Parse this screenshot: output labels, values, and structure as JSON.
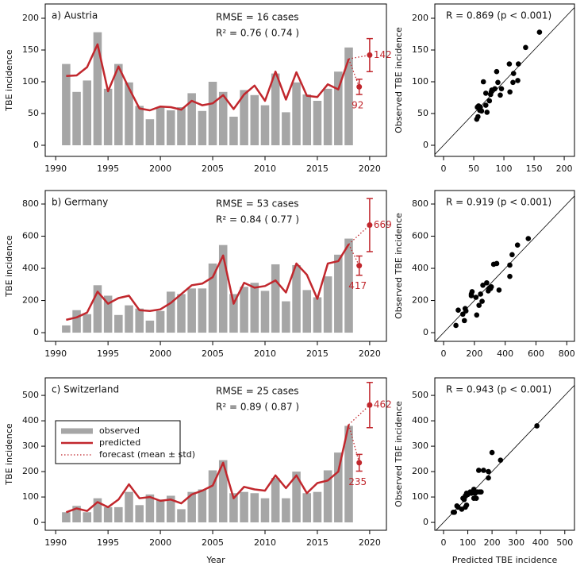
{
  "chart_data": [
    {
      "type": "bar",
      "title": "a) Austria",
      "rmse": "RMSE = 16 cases",
      "r2": "R² = 0.76 ( 0.74 )",
      "y_label": "TBE incidence",
      "x": [
        1991,
        1992,
        1993,
        1994,
        1995,
        1996,
        1997,
        1998,
        1999,
        2000,
        2001,
        2002,
        2003,
        2004,
        2005,
        2006,
        2007,
        2008,
        2009,
        2010,
        2011,
        2012,
        2013,
        2014,
        2015,
        2016,
        2017,
        2018
      ],
      "series": [
        {
          "color": "#a6a6a6",
          "values": [
            128,
            84,
            102,
            178,
            89,
            128,
            99,
            62,
            41,
            60,
            55,
            60,
            82,
            54,
            100,
            84,
            45,
            87,
            79,
            63,
            113,
            52,
            99,
            80,
            70,
            89,
            116,
            154
          ]
        },
        {
          "color": "#c1272d",
          "values": [
            109,
            110,
            123,
            159,
            85,
            124,
            90,
            58,
            55,
            61,
            60,
            56,
            70,
            63,
            66,
            79,
            57,
            80,
            94,
            70,
            116,
            72,
            115,
            78,
            76,
            96,
            88,
            136
          ]
        },
        {
          "color": "#c1272d",
          "x": [
            2019,
            2020
          ],
          "values": [
            92,
            142
          ],
          "errors": [
            12,
            26
          ]
        }
      ],
      "xlim": [
        1989,
        2021.6
      ],
      "xticks": [
        1990,
        1995,
        2000,
        2005,
        2010,
        2015,
        2020
      ],
      "ylim": [
        -17.5,
        222.5
      ],
      "yticks": [
        0,
        50,
        100,
        150,
        200
      ]
    },
    {
      "type": "scatter",
      "title": "R = 0.869 (p < 0.001)",
      "y_label": "Observed TBE incidence",
      "color": "#000000",
      "x": [
        109,
        110,
        123,
        159,
        85,
        124,
        90,
        58,
        55,
        61,
        60,
        56,
        70,
        63,
        66,
        79,
        57,
        80,
        94,
        70,
        116,
        72,
        115,
        78,
        76,
        96,
        88,
        136
      ],
      "y": [
        128,
        84,
        102,
        178,
        89,
        128,
        99,
        62,
        41,
        60,
        55,
        60,
        82,
        54,
        100,
        84,
        45,
        87,
        79,
        63,
        113,
        52,
        99,
        80,
        70,
        89,
        116,
        154
      ],
      "xlim": [
        -14.5,
        217
      ],
      "xticks": [
        0,
        50,
        100,
        150,
        200
      ],
      "ylim": [
        -17.5,
        222.5
      ],
      "yticks": [
        0,
        50,
        100,
        150,
        200
      ]
    },
    {
      "type": "bar",
      "title": "b) Germany",
      "rmse": "RMSE = 53 cases",
      "r2": "R² = 0.84 ( 0.77 )",
      "y_label": "TBE incidence",
      "x": [
        1991,
        1992,
        1993,
        1994,
        1995,
        1996,
        1997,
        1998,
        1999,
        2000,
        2001,
        2002,
        2003,
        2004,
        2005,
        2006,
        2007,
        2008,
        2009,
        2010,
        2011,
        2012,
        2013,
        2014,
        2015,
        2016,
        2017,
        2018
      ],
      "series": [
        {
          "color": "#a6a6a6",
          "values": [
            45,
            140,
            115,
            295,
            230,
            110,
            170,
            150,
            75,
            135,
            255,
            240,
            275,
            275,
            430,
            545,
            240,
            285,
            310,
            260,
            425,
            195,
            420,
            265,
            220,
            350,
            485,
            585
          ]
        },
        {
          "color": "#c1272d",
          "values": [
            80,
            95,
            125,
            255,
            180,
            215,
            230,
            140,
            135,
            145,
            185,
            240,
            295,
            305,
            345,
            480,
            180,
            310,
            280,
            290,
            325,
            250,
            430,
            360,
            210,
            430,
            445,
            550
          ]
        },
        {
          "color": "#c1272d",
          "x": [
            2019,
            2020
          ],
          "values": [
            417,
            669
          ],
          "errors": [
            60,
            165
          ]
        }
      ],
      "xlim": [
        1989,
        2021.6
      ],
      "xticks": [
        1990,
        1995,
        2000,
        2005,
        2010,
        2015,
        2020
      ],
      "ylim": [
        -54,
        884
      ],
      "yticks": [
        0,
        200,
        400,
        600,
        800
      ]
    },
    {
      "type": "scatter",
      "title": "R = 0.919 (p < 0.001)",
      "y_label": "Observed TBE incidence",
      "color": "#000000",
      "x": [
        80,
        95,
        125,
        255,
        180,
        215,
        230,
        140,
        135,
        145,
        185,
        240,
        295,
        305,
        345,
        480,
        180,
        310,
        280,
        290,
        325,
        250,
        430,
        360,
        210,
        430,
        445,
        550
      ],
      "y": [
        45,
        140,
        115,
        295,
        230,
        110,
        170,
        150,
        75,
        135,
        255,
        240,
        275,
        275,
        430,
        545,
        240,
        285,
        310,
        260,
        425,
        195,
        420,
        265,
        220,
        350,
        485,
        585
      ],
      "xlim": [
        -57,
        850
      ],
      "xticks": [
        0,
        200,
        400,
        600,
        800
      ],
      "ylim": [
        -54,
        884
      ],
      "yticks": [
        0,
        200,
        400,
        600,
        800
      ]
    },
    {
      "type": "bar",
      "title": "c) Switzerland",
      "rmse": "RMSE = 25 cases",
      "r2": "R² = 0.89 ( 0.87 )",
      "y_label": "TBE incidence",
      "x_label": "Year",
      "legend": "center left",
      "x": [
        1991,
        1992,
        1993,
        1994,
        1995,
        1996,
        1997,
        1998,
        1999,
        2000,
        2001,
        2002,
        2003,
        2004,
        2005,
        2006,
        2007,
        2008,
        2009,
        2010,
        2011,
        2012,
        2013,
        2014,
        2015,
        2016,
        2017,
        2018
      ],
      "series": [
        {
          "name": "observed",
          "color": "#a6a6a6",
          "values": [
            40,
            65,
            40,
            95,
            60,
            60,
            120,
            68,
            110,
            90,
            105,
            52,
            120,
            130,
            205,
            245,
            115,
            120,
            115,
            95,
            175,
            95,
            200,
            115,
            120,
            205,
            275,
            380
          ]
        },
        {
          "name": "predicted",
          "color": "#c1272d",
          "values": [
            40,
            55,
            45,
            80,
            60,
            90,
            150,
            95,
            100,
            85,
            90,
            75,
            110,
            125,
            145,
            235,
            95,
            140,
            130,
            125,
            185,
            135,
            185,
            115,
            155,
            165,
            200,
            385
          ]
        },
        {
          "name": "forecast (mean ± std)",
          "color": "#c1272d",
          "x": [
            2019,
            2020
          ],
          "values": [
            235,
            462
          ],
          "errors": [
            33,
            89
          ]
        }
      ],
      "xlim": [
        1989,
        2021.6
      ],
      "xticks": [
        1990,
        1995,
        2000,
        2005,
        2010,
        2015,
        2020
      ],
      "ylim": [
        -31,
        569
      ],
      "yticks": [
        0,
        100,
        200,
        300,
        400,
        500
      ]
    },
    {
      "type": "scatter",
      "title": "R = 0.943 (p < 0.001)",
      "y_label": "Observed TBE incidence",
      "x_label": "Predicted TBE incidence",
      "color": "#000000",
      "x": [
        40,
        55,
        45,
        80,
        60,
        90,
        150,
        95,
        100,
        85,
        90,
        75,
        110,
        125,
        145,
        235,
        95,
        140,
        130,
        125,
        185,
        135,
        185,
        115,
        155,
        165,
        200,
        385
      ],
      "y": [
        40,
        65,
        40,
        95,
        60,
        60,
        120,
        68,
        110,
        90,
        105,
        52,
        120,
        130,
        205,
        245,
        115,
        120,
        115,
        95,
        175,
        95,
        200,
        115,
        120,
        205,
        275,
        380
      ],
      "xlim": [
        -36,
        540
      ],
      "xticks": [
        0,
        100,
        200,
        300,
        400,
        500
      ],
      "ylim": [
        -31,
        569
      ],
      "yticks": [
        0,
        100,
        200,
        300,
        400,
        500
      ]
    }
  ]
}
